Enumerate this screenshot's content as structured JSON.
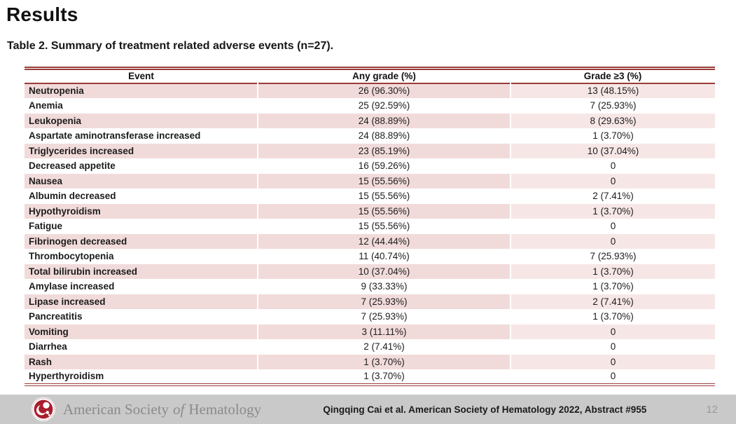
{
  "page": {
    "title": "Results",
    "table_caption": "Table 2. Summary of treatment related adverse events (n=27).",
    "page_number": "12"
  },
  "table": {
    "columns": [
      "Event",
      "Any grade (%)",
      "Grade ≥3 (%)"
    ],
    "rows": [
      [
        "Neutropenia",
        "26 (96.30%)",
        "13 (48.15%)"
      ],
      [
        "Anemia",
        "25 (92.59%)",
        "7 (25.93%)"
      ],
      [
        "Leukopenia",
        "24 (88.89%)",
        "8 (29.63%)"
      ],
      [
        "Aspartate aminotransferase increased",
        "24 (88.89%)",
        "1 (3.70%)"
      ],
      [
        "Triglycerides increased",
        "23 (85.19%)",
        "10 (37.04%)"
      ],
      [
        "Decreased appetite",
        "16 (59.26%)",
        "0"
      ],
      [
        "Nausea",
        "15 (55.56%)",
        "0"
      ],
      [
        "Albumin decreased",
        "15 (55.56%)",
        "2 (7.41%)"
      ],
      [
        "Hypothyroidism",
        "15 (55.56%)",
        "1 (3.70%)"
      ],
      [
        "Fatigue",
        "15 (55.56%)",
        "0"
      ],
      [
        "Fibrinogen decreased",
        "12 (44.44%)",
        "0"
      ],
      [
        "Thrombocytopenia",
        "11 (40.74%)",
        "7 (25.93%)"
      ],
      [
        "Total bilirubin increased",
        "10 (37.04%)",
        "1 (3.70%)"
      ],
      [
        "Amylase increased",
        "9 (33.33%)",
        "1 (3.70%)"
      ],
      [
        "Lipase increased",
        "7 (25.93%)",
        "2 (7.41%)"
      ],
      [
        "Pancreatitis",
        "7 (25.93%)",
        "1 (3.70%)"
      ],
      [
        "Vomiting",
        "3 (11.11%)",
        "0"
      ],
      [
        "Diarrhea",
        "2 (7.41%)",
        "0"
      ],
      [
        "Rash",
        "1 (3.70%)",
        "0"
      ],
      [
        "Hyperthyroidism",
        "1 (3.70%)",
        "0"
      ]
    ]
  },
  "footer": {
    "org_name_part1": "American Society",
    "org_name_of": "of",
    "org_name_part2": "Hematology",
    "citation": "Qingqing Cai et al. American Society of Hematology 2022, Abstract #955",
    "logo": "ash-logo"
  },
  "colors": {
    "accent_red_line": "#9a3c3a",
    "row_pink": "#f1dbda",
    "row_pink_light": "#f6e7e6",
    "footer_gray": "#c9c9c9",
    "logo_red": "#a81e2e"
  }
}
